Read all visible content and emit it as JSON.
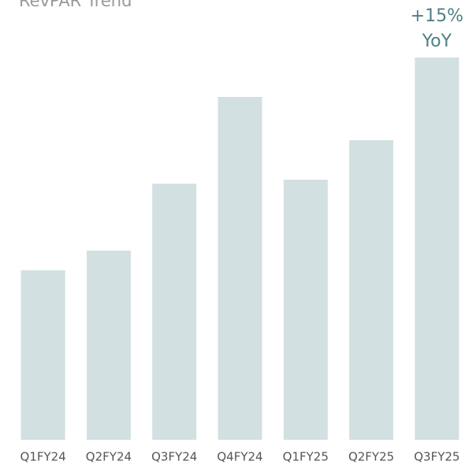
{
  "chart_data": {
    "type": "bar",
    "title": "RevPAR Trend",
    "categories": [
      "Q1FY24",
      "Q2FY24",
      "Q3FY24",
      "Q4FY24",
      "Q1FY25",
      "Q2FY25",
      "Q3FY25"
    ],
    "values": [
      43,
      48,
      65,
      87,
      66,
      76,
      97
    ],
    "color": "#d3e0e1",
    "ylim": [
      0,
      100
    ],
    "annotation": [
      "+15%",
      "YoY"
    ]
  }
}
